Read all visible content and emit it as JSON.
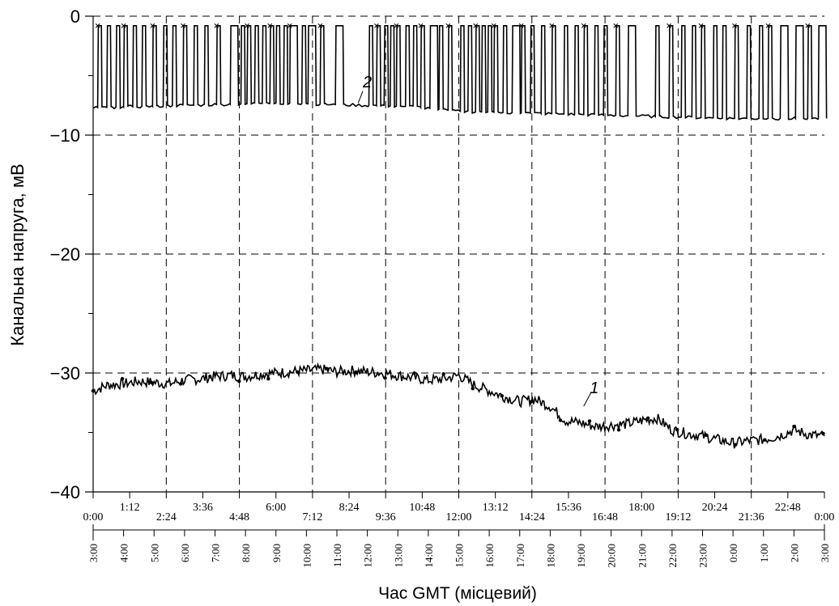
{
  "chart_data": {
    "type": "line",
    "title": "",
    "ylabel": "Канальна напруга, мВ",
    "xlabel": "Час GMT (місцевий)",
    "ylim": [
      -40,
      0
    ],
    "yticks": [
      0,
      -10,
      -20,
      -30,
      -40
    ],
    "ytick_labels": [
      "0",
      "−10",
      "−20",
      "−30",
      "−40"
    ],
    "xlim_hours": [
      0,
      24
    ],
    "xticks_gmt_labels": [
      "0:00",
      "1:12",
      "2:24",
      "3:36",
      "4:48",
      "6:00",
      "7:12",
      "8:24",
      "9:36",
      "10:48",
      "12:00",
      "13:12",
      "14:24",
      "15:36",
      "16:48",
      "18:00",
      "19:12",
      "20:24",
      "21:36",
      "22:48",
      "0:00"
    ],
    "xticks_local_labels": [
      "3:00",
      "4:00",
      "5:00",
      "6:00",
      "7:00",
      "8:00",
      "9:00",
      "10:00",
      "11:00",
      "12:00",
      "13:00",
      "14:00",
      "15:00",
      "16:00",
      "17:00",
      "18:00",
      "19:00",
      "20:00",
      "21:00",
      "22:00",
      "23:00",
      "0:00",
      "1:00",
      "2:00",
      "3:00"
    ],
    "grid": true,
    "series": [
      {
        "name": "1",
        "x": [
          0,
          0.5,
          1,
          1.5,
          2,
          2.5,
          3,
          3.5,
          4,
          4.5,
          5,
          5.5,
          6,
          6.5,
          7,
          7.5,
          8,
          8.5,
          9,
          9.5,
          10,
          10.5,
          11,
          11.5,
          12,
          12.5,
          13,
          13.5,
          14,
          14.5,
          15,
          15.5,
          16,
          16.5,
          17,
          17.5,
          18,
          18.5,
          19,
          19.5,
          20,
          20.5,
          21,
          21.5,
          22,
          22.5,
          23,
          23.5,
          24
        ],
        "values": [
          -31.5,
          -31.0,
          -30.9,
          -30.7,
          -30.8,
          -30.9,
          -30.6,
          -30.5,
          -30.3,
          -30.2,
          -30.3,
          -30.1,
          -30.0,
          -29.9,
          -29.8,
          -29.7,
          -29.9,
          -29.8,
          -29.9,
          -30.0,
          -30.2,
          -30.4,
          -30.6,
          -30.5,
          -30.2,
          -31.0,
          -31.5,
          -32.0,
          -32.4,
          -32.2,
          -32.8,
          -34.0,
          -34.2,
          -34.5,
          -34.4,
          -34.3,
          -34.0,
          -33.8,
          -34.8,
          -35.1,
          -35.3,
          -35.6,
          -35.9,
          -35.7,
          -35.6,
          -35.3,
          -34.8,
          -35.2,
          -35.3
        ]
      },
      {
        "name": "2",
        "low": [
          -7.7,
          -7.6,
          -7.5,
          -7.4,
          -7.3,
          -7.4,
          -7.5,
          -7.6,
          -8.0,
          -8.1,
          -8.2,
          -8.3,
          -8.4,
          -8.5,
          -8.6,
          -8.6,
          -8.6
        ],
        "low_x": [
          0,
          1.5,
          3,
          4.5,
          6,
          7.5,
          9,
          10.5,
          12,
          13.5,
          15,
          16.5,
          18,
          19.5,
          21,
          22.5,
          24
        ],
        "high": -0.8,
        "pulse_x": [
          0.15,
          0.45,
          0.75,
          1.0,
          1.3,
          1.6,
          1.95,
          2.3,
          2.6,
          2.95,
          3.3,
          3.65,
          4.05,
          4.5,
          4.85,
          5.05,
          5.3,
          5.55,
          5.8,
          6.0,
          6.25,
          6.45,
          6.85,
          7.05,
          7.45,
          7.95,
          9.05,
          9.3,
          9.55,
          9.75,
          9.95,
          10.25,
          10.5,
          10.75,
          11.05,
          11.35,
          11.65,
          12.05,
          12.3,
          12.55,
          12.75,
          12.95,
          13.15,
          13.45,
          13.75,
          14.05,
          14.35,
          14.7,
          15.05,
          15.45,
          15.8,
          16.1,
          16.45,
          16.75,
          17.15,
          17.55,
          18.45,
          18.9,
          19.3,
          19.65,
          19.95,
          20.35,
          20.65,
          21.05,
          21.45,
          21.85,
          22.15,
          22.55,
          23.05,
          23.45,
          23.8
        ],
        "pulse_w": [
          0.12,
          0.12,
          0.12,
          0.12,
          0.12,
          0.12,
          0.12,
          0.12,
          0.12,
          0.12,
          0.12,
          0.12,
          0.12,
          0.25,
          0.12,
          0.12,
          0.12,
          0.12,
          0.12,
          0.12,
          0.12,
          0.25,
          0.12,
          0.25,
          0.12,
          0.25,
          0.12,
          0.12,
          0.12,
          0.12,
          0.12,
          0.12,
          0.12,
          0.12,
          0.25,
          0.12,
          0.12,
          0.12,
          0.12,
          0.12,
          0.12,
          0.12,
          0.12,
          0.12,
          0.25,
          0.12,
          0.12,
          0.12,
          0.12,
          0.12,
          0.12,
          0.12,
          0.12,
          0.12,
          0.12,
          0.25,
          0.12,
          0.12,
          0.12,
          0.12,
          0.12,
          0.12,
          0.12,
          0.12,
          0.12,
          0.12,
          0.12,
          0.25,
          0.25,
          0.12,
          0.25
        ]
      }
    ]
  }
}
